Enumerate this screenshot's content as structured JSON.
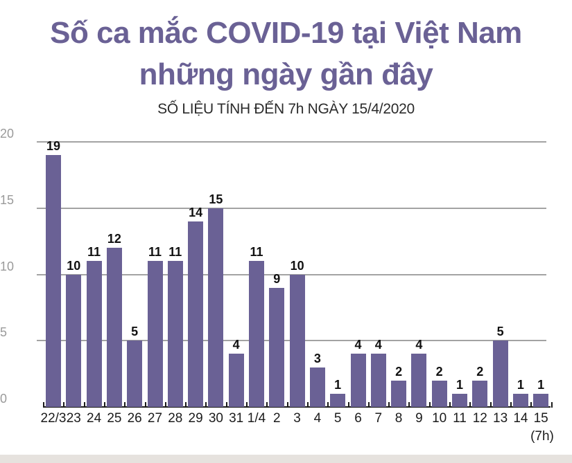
{
  "header": {
    "title_line1": "Số ca mắc COVID-19 tại Việt Nam",
    "title_line2": "những ngày gần đây",
    "subtitle": "SỐ LIỆU TÍNH ĐẾN 7h NGÀY 15/4/2020"
  },
  "colors": {
    "bar": "#6a6195",
    "title": "#6a6195",
    "grid": "#a3a3a3",
    "footer": "#e6e2de"
  },
  "chart_data": {
    "type": "bar",
    "title": "Số ca mắc COVID-19 tại Việt Nam những ngày gần đây",
    "subtitle": "SỐ LIỆU TÍNH ĐẾN 7h NGÀY 15/4/2020",
    "xlabel": "",
    "ylabel": "",
    "ylim": [
      0,
      20
    ],
    "yticks": [
      "0",
      "5",
      "10",
      "15",
      "20"
    ],
    "grid": true,
    "legend": null,
    "categories": [
      "22/3",
      "23",
      "24",
      "25",
      "26",
      "27",
      "28",
      "29",
      "30",
      "31",
      "1/4",
      "2",
      "3",
      "4",
      "5",
      "6",
      "7",
      "8",
      "9",
      "10",
      "11",
      "12",
      "13",
      "14",
      "15"
    ],
    "category_note": "(7h)",
    "values": [
      19,
      10,
      11,
      12,
      5,
      11,
      11,
      14,
      15,
      4,
      11,
      9,
      10,
      3,
      1,
      4,
      4,
      2,
      4,
      2,
      1,
      2,
      5,
      1,
      1
    ]
  }
}
